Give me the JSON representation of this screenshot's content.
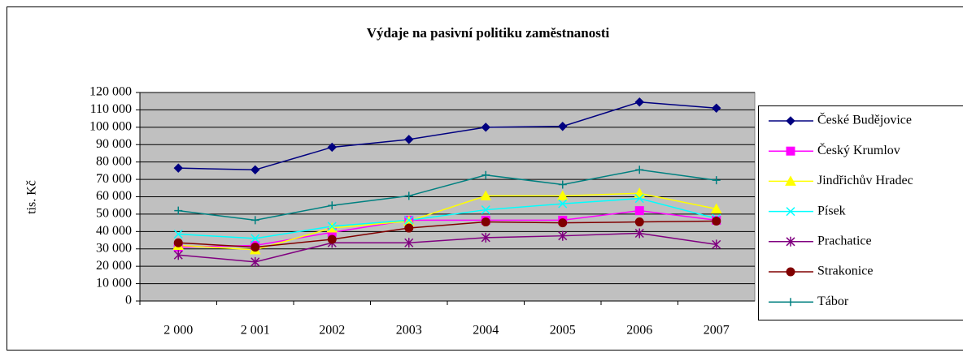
{
  "chart_data": {
    "type": "line",
    "title": "Výdaje na pasivní politiku zaměstnanosti",
    "y_label": "tis. Kč",
    "categories": [
      "2 000",
      "2 001",
      "2002",
      "2003",
      "2004",
      "2005",
      "2006",
      "2007"
    ],
    "series": [
      {
        "name": "České Budějovice",
        "color": "#000080",
        "marker": "diamond",
        "values": [
          76500,
          75500,
          88500,
          93000,
          100000,
          100500,
          114500,
          111000
        ]
      },
      {
        "name": "Český Krumlov",
        "color": "#FF00FF",
        "marker": "square",
        "values": [
          31000,
          32000,
          39500,
          46500,
          46500,
          46500,
          52000,
          46500
        ]
      },
      {
        "name": "Jindřichův Hradec",
        "color": "#FFFF00",
        "marker": "triangle",
        "values": [
          32000,
          29500,
          42000,
          46000,
          60500,
          60500,
          62000,
          53000
        ]
      },
      {
        "name": "Písek",
        "color": "#00FFFF",
        "marker": "x",
        "values": [
          38500,
          36000,
          43000,
          46500,
          52500,
          56000,
          59000,
          47500
        ]
      },
      {
        "name": "Prachatice",
        "color": "#800080",
        "marker": "asterisk",
        "values": [
          26500,
          22500,
          33500,
          33500,
          36500,
          37500,
          39000,
          32500
        ]
      },
      {
        "name": "Strakonice",
        "color": "#800000",
        "marker": "circle",
        "values": [
          33500,
          31000,
          35500,
          42000,
          45500,
          45000,
          45500,
          46000
        ]
      },
      {
        "name": "Tábor",
        "color": "#008080",
        "marker": "plus",
        "values": [
          52000,
          46500,
          55000,
          60500,
          72500,
          67000,
          75500,
          69500
        ]
      }
    ],
    "ylim": [
      0,
      120000
    ],
    "yticks": [
      0,
      {
        "value": 10000,
        "label": "10 000"
      },
      {
        "value": 20000,
        "label": "20 000"
      },
      {
        "value": 30000,
        "label": "30 000"
      },
      {
        "value": 40000,
        "label": "40 000"
      },
      {
        "value": 50000,
        "label": "50 000"
      },
      {
        "value": 60000,
        "label": "60 000"
      },
      {
        "value": 70000,
        "label": "70 000"
      },
      {
        "value": 80000,
        "label": "80 000"
      },
      {
        "value": 90000,
        "label": "90 000"
      },
      {
        "value": 100000,
        "label": "100 000"
      },
      {
        "value": 110000,
        "label": "110 000"
      },
      {
        "value": 120000,
        "label": "120 000"
      }
    ],
    "grid": true,
    "legend": "right"
  }
}
